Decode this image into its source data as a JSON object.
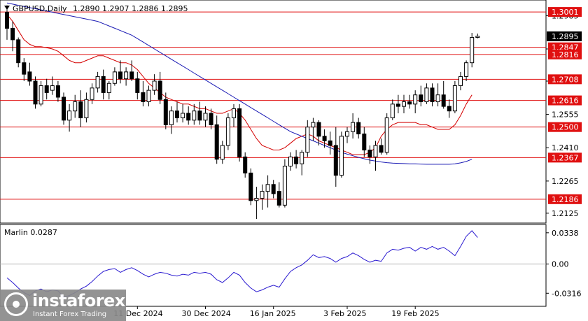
{
  "chart_data": [
    {
      "type": "candlestick",
      "symbol": "GBPUSD",
      "timeframe": "Daily",
      "header": {
        "label": "GBPUSD,Daily",
        "ohlc": "1.2890 1.2907 1.2886 1.2895"
      },
      "current_price": "1.2895",
      "ylim": [
        1.2085,
        1.305
      ],
      "y_ticks": [
        "1.2985",
        "1.2840",
        "1.2700",
        "1.2555",
        "1.2410",
        "1.2265",
        "1.2125"
      ],
      "x_ticks": [
        {
          "label": "11 Dec 2024",
          "index": 23
        },
        {
          "label": "30 Dec 2024",
          "index": 35
        },
        {
          "label": "16 Jan 2025",
          "index": 47
        },
        {
          "label": "3 Feb 2025",
          "index": 60
        },
        {
          "label": "19 Feb 2025",
          "index": 72
        }
      ],
      "levels": [
        {
          "label": "1.3001",
          "value": 1.3001
        },
        {
          "label": "1.2847",
          "value": 1.2847
        },
        {
          "label": "1.2816",
          "value": 1.2816
        },
        {
          "label": "1.2708",
          "value": 1.2708
        },
        {
          "label": "1.2616",
          "value": 1.2616
        },
        {
          "label": "1.2500",
          "value": 1.25
        },
        {
          "label": "1.2367",
          "value": 1.2367
        },
        {
          "label": "1.2186",
          "value": 1.2186
        }
      ],
      "candles": [
        [
          1.3,
          1.303,
          1.288,
          1.293
        ],
        [
          1.293,
          1.296,
          1.283,
          1.288
        ],
        [
          1.288,
          1.289,
          1.276,
          1.278
        ],
        [
          1.278,
          1.28,
          1.27,
          1.273
        ],
        [
          1.274,
          1.278,
          1.268,
          1.27
        ],
        [
          1.27,
          1.272,
          1.258,
          1.26
        ],
        [
          1.26,
          1.27,
          1.259,
          1.268
        ],
        [
          1.268,
          1.271,
          1.262,
          1.265
        ],
        [
          1.266,
          1.272,
          1.264,
          1.268
        ],
        [
          1.268,
          1.27,
          1.261,
          1.263
        ],
        [
          1.263,
          1.265,
          1.251,
          1.253
        ],
        [
          1.253,
          1.26,
          1.248,
          1.257
        ],
        [
          1.257,
          1.264,
          1.254,
          1.261
        ],
        [
          1.261,
          1.266,
          1.25,
          1.254
        ],
        [
          1.254,
          1.265,
          1.252,
          1.262
        ],
        [
          1.262,
          1.269,
          1.26,
          1.267
        ],
        [
          1.267,
          1.274,
          1.265,
          1.272
        ],
        [
          1.272,
          1.275,
          1.262,
          1.265
        ],
        [
          1.265,
          1.27,
          1.262,
          1.269
        ],
        [
          1.269,
          1.276,
          1.268,
          1.274
        ],
        [
          1.274,
          1.279,
          1.269,
          1.271
        ],
        [
          1.271,
          1.276,
          1.268,
          1.274
        ],
        [
          1.274,
          1.279,
          1.27,
          1.271
        ],
        [
          1.271,
          1.274,
          1.262,
          1.265
        ],
        [
          1.265,
          1.27,
          1.259,
          1.261
        ],
        [
          1.261,
          1.268,
          1.259,
          1.266
        ],
        [
          1.266,
          1.273,
          1.264,
          1.27
        ],
        [
          1.27,
          1.274,
          1.26,
          1.262
        ],
        [
          1.262,
          1.265,
          1.249,
          1.251
        ],
        [
          1.251,
          1.259,
          1.247,
          1.257
        ],
        [
          1.257,
          1.261,
          1.252,
          1.254
        ],
        [
          1.254,
          1.26,
          1.252,
          1.256
        ],
        [
          1.256,
          1.259,
          1.251,
          1.253
        ],
        [
          1.253,
          1.26,
          1.251,
          1.257
        ],
        [
          1.257,
          1.261,
          1.251,
          1.253
        ],
        [
          1.253,
          1.259,
          1.25,
          1.256
        ],
        [
          1.256,
          1.258,
          1.249,
          1.251
        ],
        [
          1.251,
          1.255,
          1.234,
          1.236
        ],
        [
          1.236,
          1.244,
          1.234,
          1.242
        ],
        [
          1.242,
          1.256,
          1.24,
          1.254
        ],
        [
          1.254,
          1.26,
          1.25,
          1.258
        ],
        [
          1.258,
          1.26,
          1.235,
          1.237
        ],
        [
          1.237,
          1.239,
          1.228,
          1.23
        ],
        [
          1.23,
          1.232,
          1.216,
          1.218
        ],
        [
          1.218,
          1.224,
          1.21,
          1.219
        ],
        [
          1.219,
          1.225,
          1.214,
          1.222
        ],
        [
          1.222,
          1.229,
          1.215,
          1.225
        ],
        [
          1.225,
          1.227,
          1.219,
          1.221
        ],
        [
          1.222,
          1.226,
          1.215,
          1.216
        ],
        [
          1.216,
          1.236,
          1.215,
          1.233
        ],
        [
          1.233,
          1.239,
          1.231,
          1.237
        ],
        [
          1.237,
          1.24,
          1.232,
          1.234
        ],
        [
          1.234,
          1.24,
          1.229,
          1.239
        ],
        [
          1.239,
          1.253,
          1.237,
          1.25
        ],
        [
          1.25,
          1.254,
          1.244,
          1.252
        ],
        [
          1.252,
          1.253,
          1.242,
          1.246
        ],
        [
          1.246,
          1.249,
          1.241,
          1.244
        ],
        [
          1.244,
          1.248,
          1.238,
          1.242
        ],
        [
          1.242,
          1.25,
          1.224,
          1.229
        ],
        [
          1.229,
          1.248,
          1.228,
          1.246
        ],
        [
          1.246,
          1.25,
          1.243,
          1.248
        ],
        [
          1.248,
          1.256,
          1.245,
          1.252
        ],
        [
          1.252,
          1.254,
          1.245,
          1.247
        ],
        [
          1.247,
          1.25,
          1.237,
          1.24
        ],
        [
          1.24,
          1.242,
          1.234,
          1.237
        ],
        [
          1.237,
          1.244,
          1.231,
          1.242
        ],
        [
          1.242,
          1.245,
          1.238,
          1.239
        ],
        [
          1.239,
          1.256,
          1.238,
          1.254
        ],
        [
          1.254,
          1.262,
          1.253,
          1.26
        ],
        [
          1.26,
          1.264,
          1.256,
          1.259
        ],
        [
          1.259,
          1.264,
          1.256,
          1.261
        ],
        [
          1.261,
          1.264,
          1.258,
          1.26
        ],
        [
          1.26,
          1.266,
          1.256,
          1.264
        ],
        [
          1.264,
          1.268,
          1.259,
          1.261
        ],
        [
          1.261,
          1.269,
          1.26,
          1.267
        ],
        [
          1.267,
          1.269,
          1.259,
          1.261
        ],
        [
          1.261,
          1.269,
          1.259,
          1.264
        ],
        [
          1.264,
          1.27,
          1.258,
          1.259
        ],
        [
          1.259,
          1.262,
          1.254,
          1.257
        ],
        [
          1.257,
          1.27,
          1.256,
          1.268
        ],
        [
          1.268,
          1.274,
          1.266,
          1.272
        ],
        [
          1.272,
          1.279,
          1.27,
          1.278
        ],
        [
          1.278,
          1.291,
          1.276,
          1.289
        ],
        [
          1.289,
          1.2907,
          1.2886,
          1.2895
        ]
      ],
      "series": [
        {
          "name": "",
          "color": "#d40000",
          "values": [
            1.299,
            1.296,
            1.292,
            1.288,
            1.286,
            1.285,
            1.285,
            1.2845,
            1.284,
            1.283,
            1.281,
            1.279,
            1.278,
            1.278,
            1.279,
            1.28,
            1.281,
            1.281,
            1.28,
            1.279,
            1.278,
            1.278,
            1.277,
            1.275,
            1.272,
            1.269,
            1.267,
            1.265,
            1.263,
            1.262,
            1.261,
            1.26,
            1.26,
            1.259,
            1.258,
            1.258,
            1.257,
            1.256,
            1.256,
            1.257,
            1.258,
            1.256,
            1.253,
            1.249,
            1.245,
            1.242,
            1.241,
            1.24,
            1.24,
            1.241,
            1.243,
            1.245,
            1.246,
            1.247,
            1.246,
            1.244,
            1.243,
            1.242,
            1.241,
            1.24,
            1.239,
            1.238,
            1.238,
            1.238,
            1.239,
            1.241,
            1.246,
            1.249,
            1.251,
            1.252,
            1.252,
            1.252,
            1.252,
            1.251,
            1.251,
            1.25,
            1.249,
            1.249,
            1.249,
            1.251,
            1.255,
            1.26,
            1.264
          ]
        },
        {
          "name": "",
          "color": "#1a1ab4",
          "values": [
            1.304,
            1.3035,
            1.303,
            1.3025,
            1.302,
            1.3015,
            1.301,
            1.3005,
            1.3,
            1.2995,
            1.299,
            1.2985,
            1.298,
            1.2975,
            1.297,
            1.2965,
            1.296,
            1.295,
            1.294,
            1.293,
            1.292,
            1.291,
            1.29,
            1.2885,
            1.287,
            1.2855,
            1.284,
            1.2825,
            1.281,
            1.2795,
            1.278,
            1.2765,
            1.275,
            1.2735,
            1.272,
            1.2705,
            1.269,
            1.2675,
            1.266,
            1.2645,
            1.263,
            1.2615,
            1.26,
            1.2585,
            1.257,
            1.2555,
            1.254,
            1.2525,
            1.251,
            1.2495,
            1.248,
            1.247,
            1.246,
            1.245,
            1.244,
            1.243,
            1.242,
            1.241,
            1.24,
            1.239,
            1.2382,
            1.2375,
            1.2368,
            1.2362,
            1.2356,
            1.2352,
            1.2348,
            1.2345,
            1.2343,
            1.2342,
            1.2341,
            1.234,
            1.234,
            1.2339,
            1.2338,
            1.2338,
            1.2338,
            1.2338,
            1.2338,
            1.234,
            1.2344,
            1.235,
            1.236
          ]
        }
      ]
    },
    {
      "type": "line",
      "indicator_label": "Marlin 0.0287",
      "ylim": [
        -0.045,
        0.042
      ],
      "y_ticks": [
        "0.0338",
        "0.00",
        "-0.0316"
      ],
      "zero_line": 0.0,
      "series": [
        {
          "name": "",
          "color": "#2a1ad0",
          "values": [
            -0.015,
            -0.02,
            -0.026,
            -0.031,
            -0.034,
            -0.029,
            -0.027,
            -0.03,
            -0.028,
            -0.029,
            -0.036,
            -0.034,
            -0.031,
            -0.027,
            -0.024,
            -0.019,
            -0.013,
            -0.008,
            -0.006,
            -0.005,
            -0.009,
            -0.006,
            -0.004,
            -0.007,
            -0.011,
            -0.014,
            -0.011,
            -0.009,
            -0.01,
            -0.012,
            -0.013,
            -0.011,
            -0.012,
            -0.009,
            -0.01,
            -0.009,
            -0.011,
            -0.017,
            -0.02,
            -0.015,
            -0.009,
            -0.012,
            -0.02,
            -0.026,
            -0.03,
            -0.028,
            -0.025,
            -0.023,
            -0.025,
            -0.016,
            -0.008,
            -0.004,
            -0.001,
            0.004,
            0.01,
            0.007,
            0.008,
            0.006,
            0.002,
            0.006,
            0.008,
            0.012,
            0.009,
            0.005,
            0.002,
            0.004,
            0.003,
            0.012,
            0.016,
            0.015,
            0.017,
            0.018,
            0.014,
            0.018,
            0.016,
            0.019,
            0.016,
            0.018,
            0.014,
            0.009,
            0.019,
            0.03,
            0.036,
            0.0287
          ]
        }
      ]
    }
  ],
  "watermark": {
    "brand": "instaforex",
    "tagline": "Instant Forex Trading"
  }
}
